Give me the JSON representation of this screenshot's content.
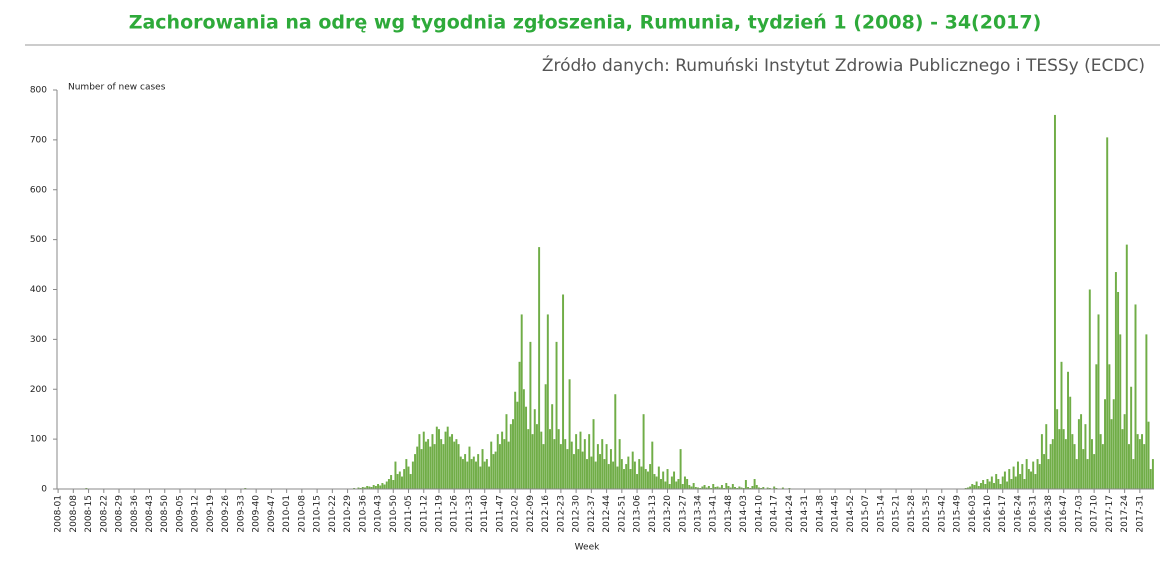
{
  "chart_data": {
    "type": "bar",
    "title": "Zachorowania na odrę wg tygodnia zgłoszenia, Rumunia, tydzień 1 (2008) - 34(2017)",
    "subtitle": "Źródło danych: Rumuński Instytut Zdrowia Publicznego i TESSy (ECDC)",
    "y_label": "Number of new cases",
    "x_label": "Week",
    "color": "#70ad47",
    "ylim": [
      0,
      800
    ],
    "yticks": [
      0,
      100,
      200,
      300,
      400,
      500,
      600,
      700,
      800
    ],
    "categories": [
      "2008-01",
      null,
      null,
      null,
      null,
      null,
      null,
      "2008-08",
      null,
      null,
      null,
      null,
      null,
      null,
      "2008-15",
      null,
      null,
      null,
      null,
      null,
      null,
      "2008-22",
      null,
      null,
      null,
      null,
      null,
      null,
      "2008-29",
      null,
      null,
      null,
      null,
      null,
      null,
      "2008-36",
      null,
      null,
      null,
      null,
      null,
      null,
      "2008-43",
      null,
      null,
      null,
      null,
      null,
      null,
      "2008-50",
      null,
      null,
      null,
      null,
      null,
      null,
      "2009-05",
      null,
      null,
      null,
      null,
      null,
      null,
      "2009-12",
      null,
      null,
      null,
      null,
      null,
      null,
      "2009-19",
      null,
      null,
      null,
      null,
      null,
      null,
      "2009-26",
      null,
      null,
      null,
      null,
      null,
      null,
      "2009-33",
      null,
      null,
      null,
      null,
      null,
      null,
      "2009-40",
      null,
      null,
      null,
      null,
      null,
      null,
      "2009-47",
      null,
      null,
      null,
      null,
      null,
      null,
      "2010-01",
      null,
      null,
      null,
      null,
      null,
      null,
      "2010-08",
      null,
      null,
      null,
      null,
      null,
      null,
      "2010-15",
      null,
      null,
      null,
      null,
      null,
      null,
      "2010-22",
      null,
      null,
      null,
      null,
      null,
      null,
      "2010-29",
      null,
      null,
      null,
      null,
      null,
      null,
      "2010-36",
      null,
      null,
      null,
      null,
      null,
      null,
      "2010-43",
      null,
      null,
      null,
      null,
      null,
      null,
      "2010-50",
      null,
      null,
      null,
      null,
      null,
      null,
      "2011-05",
      null,
      null,
      null,
      null,
      null,
      null,
      "2011-12",
      null,
      null,
      null,
      null,
      null,
      null,
      "2011-19",
      null,
      null,
      null,
      null,
      null,
      null,
      "2011-26",
      null,
      null,
      null,
      null,
      null,
      null,
      "2011-33",
      null,
      null,
      null,
      null,
      null,
      null,
      "2011-40",
      null,
      null,
      null,
      null,
      null,
      null,
      "2011-47",
      null,
      null,
      null,
      null,
      null,
      null,
      "2012-02",
      null,
      null,
      null,
      null,
      null,
      null,
      "2012-09",
      null,
      null,
      null,
      null,
      null,
      null,
      "2012-16",
      null,
      null,
      null,
      null,
      null,
      null,
      "2012-23",
      null,
      null,
      null,
      null,
      null,
      null,
      "2012-30",
      null,
      null,
      null,
      null,
      null,
      null,
      "2012-37",
      null,
      null,
      null,
      null,
      null,
      null,
      "2012-44",
      null,
      null,
      null,
      null,
      null,
      null,
      "2012-51",
      null,
      null,
      null,
      null,
      null,
      null,
      "2013-06",
      null,
      null,
      null,
      null,
      null,
      null,
      "2013-13",
      null,
      null,
      null,
      null,
      null,
      null,
      "2013-20",
      null,
      null,
      null,
      null,
      null,
      null,
      "2013-27",
      null,
      null,
      null,
      null,
      null,
      null,
      "2013-34",
      null,
      null,
      null,
      null,
      null,
      null,
      "2013-41",
      null,
      null,
      null,
      null,
      null,
      null,
      "2013-48",
      null,
      null,
      null,
      null,
      null,
      null,
      "2014-03",
      null,
      null,
      null,
      null,
      null,
      null,
      "2014-10",
      null,
      null,
      null,
      null,
      null,
      null,
      "2014-17",
      null,
      null,
      null,
      null,
      null,
      null,
      "2014-24",
      null,
      null,
      null,
      null,
      null,
      null,
      "2014-31",
      null,
      null,
      null,
      null,
      null,
      null,
      "2014-38",
      null,
      null,
      null,
      null,
      null,
      null,
      "2014-45",
      null,
      null,
      null,
      null,
      null,
      null,
      "2014-52",
      null,
      null,
      null,
      null,
      null,
      null,
      "2015-07",
      null,
      null,
      null,
      null,
      null,
      null,
      "2015-14",
      null,
      null,
      null,
      null,
      null,
      null,
      "2015-21",
      null,
      null,
      null,
      null,
      null,
      null,
      "2015-28",
      null,
      null,
      null,
      null,
      null,
      null,
      "2015-35",
      null,
      null,
      null,
      null,
      null,
      null,
      "2015-42",
      null,
      null,
      null,
      null,
      null,
      null,
      "2015-49",
      null,
      null,
      null,
      null,
      null,
      null,
      "2016-03",
      null,
      null,
      null,
      null,
      null,
      null,
      "2016-10",
      null,
      null,
      null,
      null,
      null,
      null,
      "2016-17",
      null,
      null,
      null,
      null,
      null,
      null,
      "2016-24",
      null,
      null,
      null,
      null,
      null,
      null,
      "2016-31",
      null,
      null,
      null,
      null,
      null,
      null,
      "2016-38",
      null,
      null,
      null,
      null,
      null,
      null,
      "2016-47",
      null,
      null,
      null,
      null,
      null,
      null,
      "2017-03",
      null,
      null,
      null,
      null,
      null,
      null,
      "2017-10",
      null,
      null,
      null,
      null,
      null,
      null,
      "2017-17",
      null,
      null,
      null,
      null,
      null,
      null,
      "2017-24",
      null,
      null,
      null,
      null,
      null,
      null,
      "2017-31",
      null,
      null,
      null,
      null,
      null,
      null
    ],
    "values": [
      1,
      0,
      1,
      0,
      0,
      1,
      0,
      0,
      1,
      0,
      0,
      0,
      1,
      2,
      0,
      1,
      0,
      0,
      1,
      0,
      0,
      1,
      0,
      0,
      0,
      1,
      0,
      0,
      0,
      0,
      0,
      1,
      0,
      0,
      0,
      0,
      0,
      1,
      0,
      0,
      0,
      0,
      0,
      1,
      0,
      0,
      0,
      0,
      1,
      0,
      0,
      0,
      0,
      0,
      0,
      0,
      1,
      0,
      0,
      0,
      0,
      0,
      0,
      0,
      0,
      0,
      1,
      0,
      0,
      0,
      0,
      0,
      0,
      0,
      0,
      0,
      0,
      0,
      0,
      0,
      0,
      0,
      0,
      0,
      0,
      1,
      2,
      1,
      0,
      0,
      0,
      0,
      0,
      0,
      0,
      0,
      0,
      0,
      0,
      0,
      0,
      0,
      0,
      0,
      0,
      0,
      0,
      0,
      0,
      0,
      0,
      0,
      0,
      0,
      0,
      0,
      0,
      0,
      0,
      0,
      0,
      0,
      0,
      0,
      0,
      0,
      0,
      0,
      1,
      0,
      0,
      0,
      0,
      0,
      1,
      1,
      2,
      1,
      3,
      2,
      4,
      3,
      6,
      5,
      4,
      8,
      6,
      10,
      7,
      12,
      9,
      15,
      20,
      28,
      18,
      55,
      30,
      35,
      25,
      40,
      60,
      45,
      30,
      55,
      70,
      85,
      110,
      80,
      115,
      95,
      100,
      85,
      110,
      90,
      125,
      120,
      100,
      90,
      115,
      125,
      105,
      110,
      95,
      100,
      90,
      65,
      60,
      70,
      55,
      85,
      60,
      65,
      55,
      70,
      45,
      80,
      55,
      60,
      45,
      95,
      70,
      75,
      110,
      90,
      115,
      100,
      150,
      95,
      130,
      140,
      195,
      175,
      255,
      350,
      200,
      165,
      120,
      295,
      110,
      160,
      130,
      485,
      115,
      90,
      210,
      350,
      120,
      170,
      100,
      295,
      120,
      90,
      390,
      100,
      80,
      220,
      95,
      70,
      110,
      80,
      115,
      75,
      100,
      60,
      110,
      65,
      140,
      55,
      90,
      70,
      100,
      60,
      90,
      50,
      80,
      55,
      190,
      45,
      100,
      60,
      40,
      50,
      65,
      40,
      75,
      55,
      30,
      60,
      45,
      150,
      40,
      35,
      50,
      95,
      30,
      25,
      45,
      20,
      35,
      15,
      40,
      10,
      25,
      35,
      15,
      20,
      80,
      10,
      25,
      20,
      8,
      5,
      12,
      4,
      3,
      2,
      5,
      8,
      3,
      6,
      2,
      10,
      4,
      5,
      3,
      8,
      2,
      12,
      6,
      3,
      10,
      4,
      2,
      5,
      3,
      2,
      18,
      4,
      2,
      6,
      20,
      8,
      3,
      2,
      4,
      1,
      3,
      2,
      1,
      5,
      2,
      1,
      0,
      3,
      1,
      0,
      2,
      1,
      0,
      0,
      1,
      0,
      0,
      0,
      1,
      0,
      0,
      0,
      0,
      0,
      0,
      1,
      0,
      0,
      0,
      0,
      0,
      0,
      0,
      0,
      0,
      0,
      0,
      0,
      0,
      0,
      0,
      0,
      0,
      0,
      0,
      0,
      0,
      0,
      0,
      0,
      0,
      0,
      0,
      0,
      0,
      0,
      0,
      0,
      0,
      0,
      0,
      1,
      0,
      0,
      0,
      0,
      0,
      0,
      0,
      0,
      0,
      0,
      0,
      0,
      0,
      0,
      0,
      0,
      0,
      0,
      0,
      0,
      0,
      0,
      0,
      0,
      0,
      1,
      0,
      0,
      1,
      2,
      3,
      5,
      10,
      8,
      15,
      6,
      12,
      18,
      10,
      20,
      15,
      25,
      12,
      30,
      20,
      10,
      25,
      35,
      15,
      40,
      20,
      45,
      25,
      55,
      30,
      50,
      20,
      60,
      40,
      35,
      55,
      30,
      60,
      50,
      110,
      70,
      130,
      60,
      90,
      100,
      750,
      160,
      120,
      255,
      120,
      100,
      235,
      185,
      110,
      90,
      60,
      140,
      150,
      80,
      130,
      60,
      400,
      100,
      70,
      250,
      350,
      110,
      90,
      180,
      705,
      250,
      140,
      180,
      435,
      395,
      310,
      120,
      150,
      490,
      90,
      205,
      60,
      370,
      110,
      100,
      110,
      90,
      310,
      135,
      40,
      60
    ]
  }
}
